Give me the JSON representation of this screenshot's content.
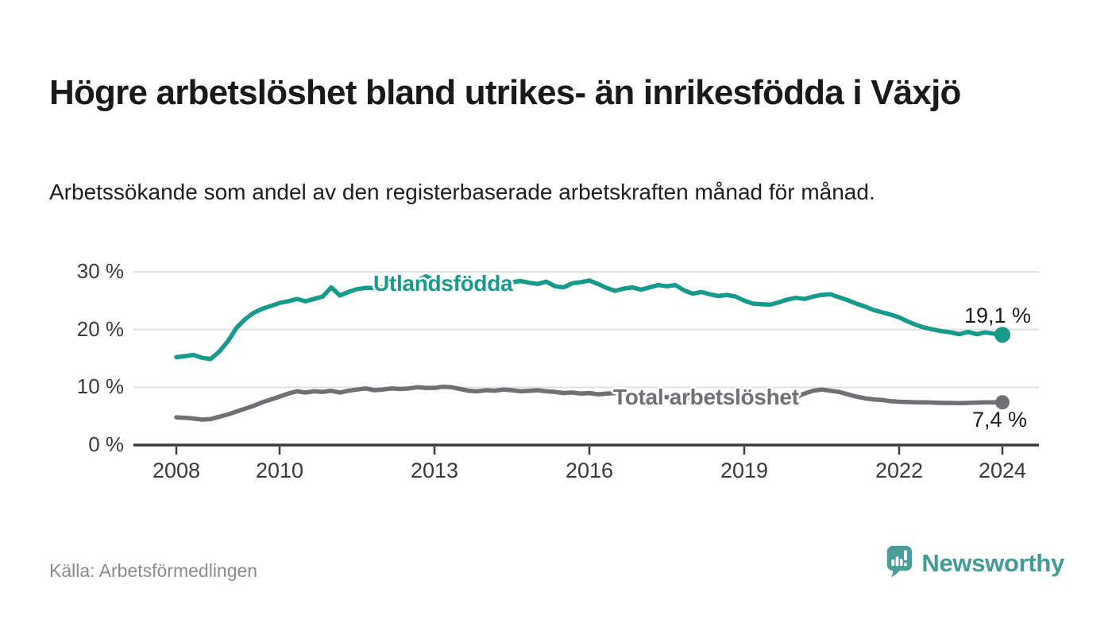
{
  "page": {
    "title": "Högre arbetslöshet bland utrikes- än inrikesfödda i Växjö",
    "subtitle": "Arbetssökande som andel av den registerbaserade arbetskraften månad för månad.",
    "source": "Källa: Arbetsförmedlingen",
    "brand": {
      "name": "Newsworthy",
      "icon": "newsworthy-speech-bubble-bar-chart-icon",
      "wordmark_color": "#3f9b94",
      "badge_color": "#4a9d98"
    }
  },
  "colors": {
    "foreign_born_line": "#17998c",
    "total_line": "#6f6f74",
    "gridline": "#e0e0e0",
    "axis": "#3d3d3d",
    "tick_text": "#393939",
    "end_label_text": "#1a1a1a"
  },
  "chart_data": {
    "type": "line",
    "title": "Högre arbetslöshet bland utrikes- än inrikesfödda i Växjö",
    "subtitle": "Arbetssökande som andel av den registerbaserade arbetskraften månad för månad.",
    "xlabel": "",
    "ylabel": "",
    "x_start_year": 2008,
    "x_step_months": 2,
    "x_end_year": 2024,
    "ylim": [
      0,
      33
    ],
    "grid": "horizontal",
    "legend_position": "inline-on-line",
    "x_ticks": [
      2008,
      2010,
      2013,
      2016,
      2019,
      2022,
      2024
    ],
    "y_ticks": [
      {
        "value": 30,
        "label": "30 %"
      },
      {
        "value": 20,
        "label": "20 %"
      },
      {
        "value": 10,
        "label": "10 %"
      },
      {
        "value": 0,
        "label": "0 %"
      }
    ],
    "series": [
      {
        "name": "Utlandsfödda",
        "color": "#17998c",
        "end_label": "19,1 %",
        "end_value": 19.1,
        "values": [
          15.2,
          15.4,
          15.6,
          15.1,
          14.9,
          16.2,
          18.0,
          20.3,
          21.8,
          22.9,
          23.6,
          24.1,
          24.6,
          24.9,
          25.3,
          24.9,
          25.3,
          25.7,
          27.3,
          25.9,
          26.5,
          27.0,
          27.2,
          27.2,
          27.3,
          27.6,
          27.4,
          27.9,
          28.5,
          29.2,
          28.6,
          28.2,
          28.5,
          28.7,
          28.4,
          28.1,
          28.4,
          28.0,
          27.8,
          28.2,
          28.4,
          28.1,
          27.9,
          28.3,
          27.5,
          27.3,
          28.0,
          28.2,
          28.5,
          27.9,
          27.2,
          26.7,
          27.1,
          27.3,
          26.9,
          27.3,
          27.7,
          27.5,
          27.7,
          26.8,
          26.2,
          26.5,
          26.1,
          25.8,
          26.0,
          25.7,
          25.0,
          24.5,
          24.4,
          24.3,
          24.7,
          25.2,
          25.5,
          25.3,
          25.7,
          26.0,
          26.1,
          25.6,
          25.1,
          24.5,
          24.0,
          23.4,
          23.0,
          22.6,
          22.1,
          21.4,
          20.8,
          20.3,
          20.0,
          19.7,
          19.5,
          19.2,
          19.6,
          19.2,
          19.5,
          19.3,
          19.1
        ]
      },
      {
        "name": "Total arbetslöshet",
        "color": "#6f6f74",
        "end_label": "7,4 %",
        "end_value": 7.4,
        "values": [
          4.8,
          4.7,
          4.6,
          4.4,
          4.5,
          4.9,
          5.3,
          5.8,
          6.3,
          6.8,
          7.4,
          7.9,
          8.4,
          8.9,
          9.3,
          9.1,
          9.3,
          9.2,
          9.4,
          9.1,
          9.4,
          9.6,
          9.8,
          9.5,
          9.6,
          9.8,
          9.7,
          9.8,
          10.0,
          9.9,
          9.9,
          10.1,
          10.0,
          9.7,
          9.4,
          9.3,
          9.5,
          9.4,
          9.6,
          9.5,
          9.3,
          9.4,
          9.5,
          9.3,
          9.2,
          9.0,
          9.1,
          8.9,
          9.0,
          8.8,
          8.9,
          9.0,
          8.8,
          8.6,
          8.5,
          8.6,
          8.4,
          8.3,
          8.4,
          8.2,
          8.1,
          7.9,
          7.8,
          7.7,
          7.8,
          7.7,
          7.7,
          7.6,
          7.7,
          7.8,
          7.9,
          8.0,
          8.3,
          8.9,
          9.4,
          9.6,
          9.4,
          9.2,
          8.8,
          8.4,
          8.1,
          7.9,
          7.8,
          7.6,
          7.5,
          7.45,
          7.4,
          7.4,
          7.35,
          7.3,
          7.3,
          7.25,
          7.3,
          7.35,
          7.4,
          7.4,
          7.4
        ]
      }
    ]
  }
}
